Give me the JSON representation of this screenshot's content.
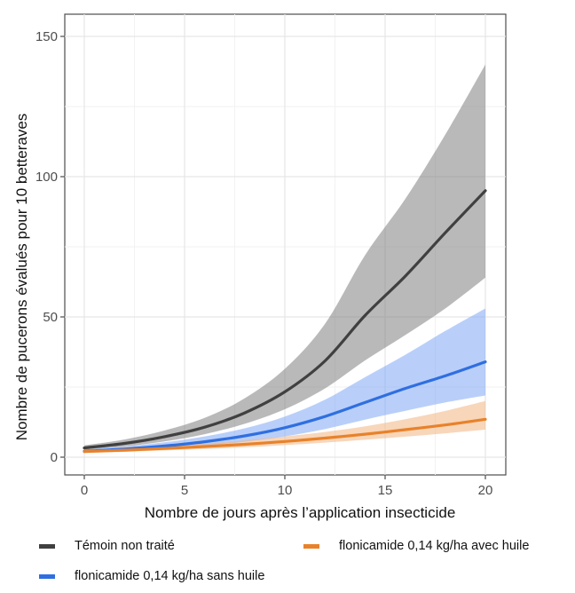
{
  "chart_data": {
    "type": "line",
    "title": "",
    "xlabel": "Nombre de jours après l’application insecticide",
    "ylabel": "Nombre de pucerons évalués pour 10 betteraves",
    "xlim": [
      0,
      20
    ],
    "ylim": [
      0,
      150
    ],
    "x_ticks": [
      0,
      5,
      10,
      15,
      20
    ],
    "y_ticks": [
      0,
      50,
      100,
      150
    ],
    "y_tick_labels": [
      "0",
      "50",
      "100",
      "150"
    ],
    "grid": true,
    "legend_position": "bottom",
    "x": [
      0,
      2,
      4,
      6,
      8,
      10,
      12,
      14,
      16,
      18,
      20
    ],
    "series": [
      {
        "name": "Témoin non traité",
        "color": "#404040",
        "band_color": "#7f7f7f",
        "values": [
          3.3,
          4.9,
          7.3,
          10.7,
          15.8,
          23.3,
          34.3,
          50.5,
          64.5,
          80,
          95
        ],
        "lower": [
          2.6,
          3.8,
          5.6,
          8.2,
          11.9,
          17.1,
          24.5,
          34.5,
          43.5,
          53,
          64
        ],
        "upper": [
          4.2,
          6.3,
          9.5,
          14.0,
          21.0,
          31.5,
          47.5,
          72,
          92,
          115,
          140
        ]
      },
      {
        "name": "flonicamide 0,14 kg/ha sans huile",
        "color": "#2f6fe0",
        "band_color": "#7fa8f5",
        "values": [
          2.1,
          2.9,
          4.0,
          5.5,
          7.6,
          10.5,
          14.5,
          19.5,
          24.5,
          29,
          34
        ],
        "lower": [
          1.6,
          2.2,
          3.0,
          4.1,
          5.5,
          7.4,
          10.0,
          13.4,
          16.5,
          19.5,
          22
        ],
        "upper": [
          2.7,
          3.8,
          5.3,
          7.4,
          10.3,
          14.5,
          20.5,
          28.5,
          36.5,
          45,
          53
        ]
      },
      {
        "name": "flonicamide 0,14 kg/ha avec huile",
        "color": "#e8822a",
        "band_color": "#f3b482",
        "values": [
          2.0,
          2.5,
          3.1,
          3.8,
          4.6,
          5.6,
          6.8,
          8.2,
          9.8,
          11.5,
          13.5
        ],
        "lower": [
          1.5,
          1.9,
          2.4,
          2.9,
          3.5,
          4.3,
          5.2,
          6.2,
          7.3,
          8.5,
          9.8
        ],
        "upper": [
          2.6,
          3.2,
          4.0,
          4.9,
          6.0,
          7.4,
          9.0,
          11.0,
          13.5,
          16.5,
          20
        ]
      }
    ]
  }
}
